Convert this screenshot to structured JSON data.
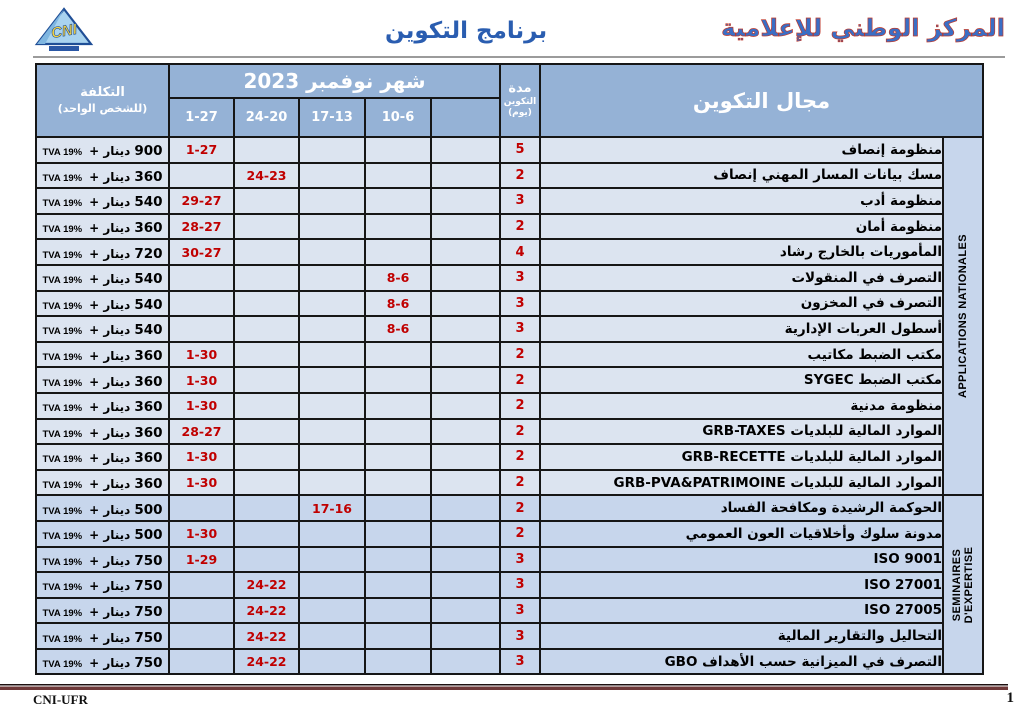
{
  "page": {
    "org_title": "المركز الوطني للإعلامية",
    "doc_title": "برنامج التكوين",
    "logo_text": "CNI",
    "footer_left": "CNI-UFR",
    "page_number": "1"
  },
  "colors": {
    "header_bg": "#95b2d6",
    "row_light": "#dce4f0",
    "row_dark": "#c7d6ec",
    "date_red": "#c00000",
    "title_blue": "#2a5db0",
    "org_blue": "#3a6ec5",
    "org_outline": "#c03a2b",
    "rule_maroon": "#6e3838"
  },
  "table": {
    "field_header": "مجال التكوين",
    "month_header": "شهر نوفمبر 2023",
    "date_columns": [
      "1-27",
      "24-20",
      "17-13",
      "10-6",
      ""
    ],
    "duration_header": {
      "line1": "مدة",
      "line2": "التكوين",
      "line3": "(يوم)"
    },
    "cost_header": {
      "line1": "التكلفة",
      "line2": "(للشخص الواحد)"
    },
    "cost_unit": "دينار +",
    "cost_tva": "TVA 19%",
    "categories": [
      {
        "label": "APPLICATIONS NATIONALES",
        "rows": 14
      },
      {
        "label": "SEMINAIRES\nD'EXPERTISE",
        "rows": 7
      }
    ],
    "rows": [
      {
        "name": "منظومة إنصاف",
        "duration": "5",
        "dates": [
          "1-27",
          "",
          "",
          "",
          ""
        ],
        "cost": "900"
      },
      {
        "name": "مسك بيانات المسار المهني إنصاف",
        "duration": "2",
        "dates": [
          "",
          "24-23",
          "",
          "",
          ""
        ],
        "cost": "360"
      },
      {
        "name": "منظومة أدب",
        "duration": "3",
        "dates": [
          "29-27",
          "",
          "",
          "",
          ""
        ],
        "cost": "540"
      },
      {
        "name": "منظومة أمان",
        "duration": "2",
        "dates": [
          "28-27",
          "",
          "",
          "",
          ""
        ],
        "cost": "360"
      },
      {
        "name": "المأموريات بالخارج رشاد",
        "duration": "4",
        "dates": [
          "30-27",
          "",
          "",
          "",
          ""
        ],
        "cost": "720"
      },
      {
        "name": "التصرف في المنقولات",
        "duration": "3",
        "dates": [
          "",
          "",
          "",
          "8-6",
          ""
        ],
        "cost": "540"
      },
      {
        "name": "التصرف في المخزون",
        "duration": "3",
        "dates": [
          "",
          "",
          "",
          "8-6",
          ""
        ],
        "cost": "540"
      },
      {
        "name": "أسطول العربات الإدارية",
        "duration": "3",
        "dates": [
          "",
          "",
          "",
          "8-6",
          ""
        ],
        "cost": "540"
      },
      {
        "name": "مكتب الضبط مكاتيب",
        "duration": "2",
        "dates": [
          "1-30",
          "",
          "",
          "",
          ""
        ],
        "cost": "360"
      },
      {
        "name": "مكتب الضبط SYGEC",
        "duration": "2",
        "dates": [
          "1-30",
          "",
          "",
          "",
          ""
        ],
        "cost": "360"
      },
      {
        "name": "منظومة مدنية",
        "duration": "2",
        "dates": [
          "1-30",
          "",
          "",
          "",
          ""
        ],
        "cost": "360"
      },
      {
        "name": "الموارد المالية للبلديات GRB-TAXES",
        "duration": "2",
        "dates": [
          "28-27",
          "",
          "",
          "",
          ""
        ],
        "cost": "360"
      },
      {
        "name": "الموارد المالية للبلديات GRB-RECETTE",
        "duration": "2",
        "dates": [
          "1-30",
          "",
          "",
          "",
          ""
        ],
        "cost": "360"
      },
      {
        "name": "الموارد المالية للبلديات GRB-PVA&PATRIMOINE",
        "duration": "2",
        "dates": [
          "1-30",
          "",
          "",
          "",
          ""
        ],
        "cost": "360"
      },
      {
        "name": "الحوكمة الرشيدة ومكافحة الفساد",
        "duration": "2",
        "dates": [
          "",
          "",
          "17-16",
          "",
          ""
        ],
        "cost": "500"
      },
      {
        "name": "مدونة سلوك وأخلاقيات العون العمومي",
        "duration": "2",
        "dates": [
          "1-30",
          "",
          "",
          "",
          ""
        ],
        "cost": "500"
      },
      {
        "name": "ISO 9001",
        "duration": "3",
        "dates": [
          "1-29",
          "",
          "",
          "",
          ""
        ],
        "cost": "750"
      },
      {
        "name": "ISO 27001",
        "duration": "3",
        "dates": [
          "",
          "24-22",
          "",
          "",
          ""
        ],
        "cost": "750"
      },
      {
        "name": "ISO 27005",
        "duration": "3",
        "dates": [
          "",
          "24-22",
          "",
          "",
          ""
        ],
        "cost": "750"
      },
      {
        "name": "التحاليل والتقارير المالية",
        "duration": "3",
        "dates": [
          "",
          "24-22",
          "",
          "",
          ""
        ],
        "cost": "750"
      },
      {
        "name": "التصرف في الميزانية حسب الأهداف GBO",
        "duration": "3",
        "dates": [
          "",
          "24-22",
          "",
          "",
          ""
        ],
        "cost": "750"
      }
    ]
  }
}
